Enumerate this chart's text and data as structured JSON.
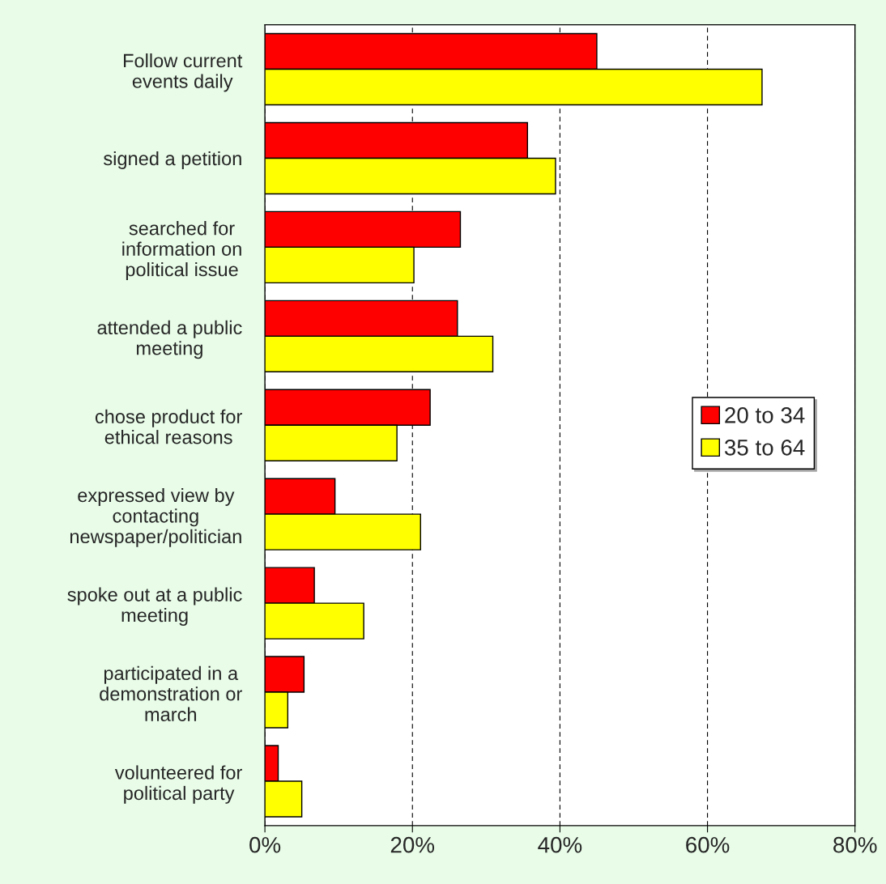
{
  "chart_data": {
    "type": "bar",
    "orientation": "horizontal",
    "categories": [
      "Follow current\nevents daily",
      "signed a petition",
      "searched for\ninformation on\npolitical issue",
      "attended a public\nmeeting",
      "chose product for\nethical reasons",
      "expressed view by\ncontacting\nnewspaper/politician",
      "spoke out at a public\nmeeting",
      "participated in a\ndemonstration or\nmarch",
      "volunteered for\npolitical party"
    ],
    "series": [
      {
        "name": "20 to 34",
        "color": "#ff0000",
        "values": [
          45.0,
          35.6,
          26.5,
          26.1,
          22.4,
          9.5,
          6.7,
          5.3,
          1.8
        ]
      },
      {
        "name": "35 to 64",
        "color": "#ffff00",
        "values": [
          67.4,
          39.4,
          20.2,
          30.9,
          17.9,
          21.1,
          13.4,
          3.1,
          5.0
        ]
      }
    ],
    "xlim": [
      0,
      80
    ],
    "xticks": [
      {
        "value": 0,
        "label": "0%"
      },
      {
        "value": 20,
        "label": "20%"
      },
      {
        "value": 40,
        "label": "40%"
      },
      {
        "value": 60,
        "label": "60%"
      },
      {
        "value": 80,
        "label": "80%"
      }
    ],
    "grid": "x",
    "legend": "right"
  }
}
